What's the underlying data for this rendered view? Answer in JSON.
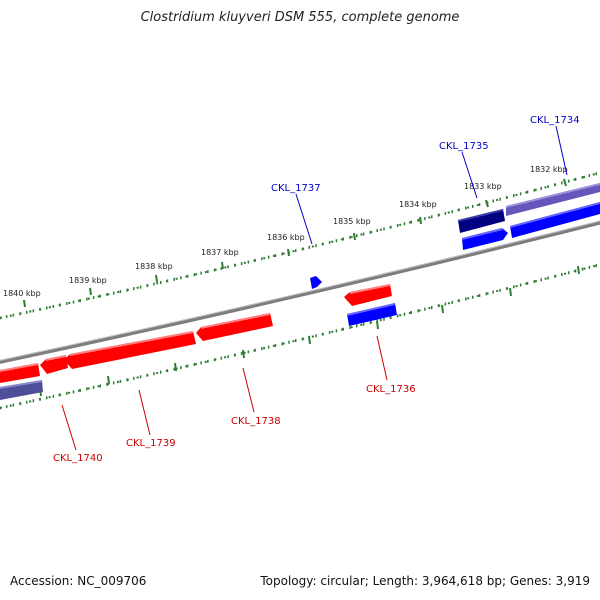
{
  "header": {
    "title": "Clostridium kluyveri DSM 555, complete genome"
  },
  "footer": {
    "accession": "Accession: NC_009706",
    "summary": "Topology: circular; Length: 3,964,618 bp; Genes: 3,919"
  },
  "colors": {
    "backbone": "#8a8a8a",
    "tick": "#2e7d32",
    "forward_gene": "#0000ff",
    "forward_gene_dark": "#000080",
    "forward_gene_light": "#6655bb",
    "reverse_gene": "#ff0000",
    "forward_label": "#0000cc",
    "reverse_label": "#cc0000"
  },
  "scale": {
    "unit": "kbp",
    "labels": [
      "1832 kbp",
      "1833 kbp",
      "1834 kbp",
      "1835 kbp",
      "1836 kbp",
      "1837 kbp",
      "1838 kbp",
      "1839 kbp",
      "1840 kbp"
    ]
  },
  "genes": {
    "forward": [
      "CKL_1734",
      "CKL_1735",
      "CKL_1737"
    ],
    "reverse": [
      "CKL_1736",
      "CKL_1738",
      "CKL_1739",
      "CKL_1740"
    ]
  }
}
